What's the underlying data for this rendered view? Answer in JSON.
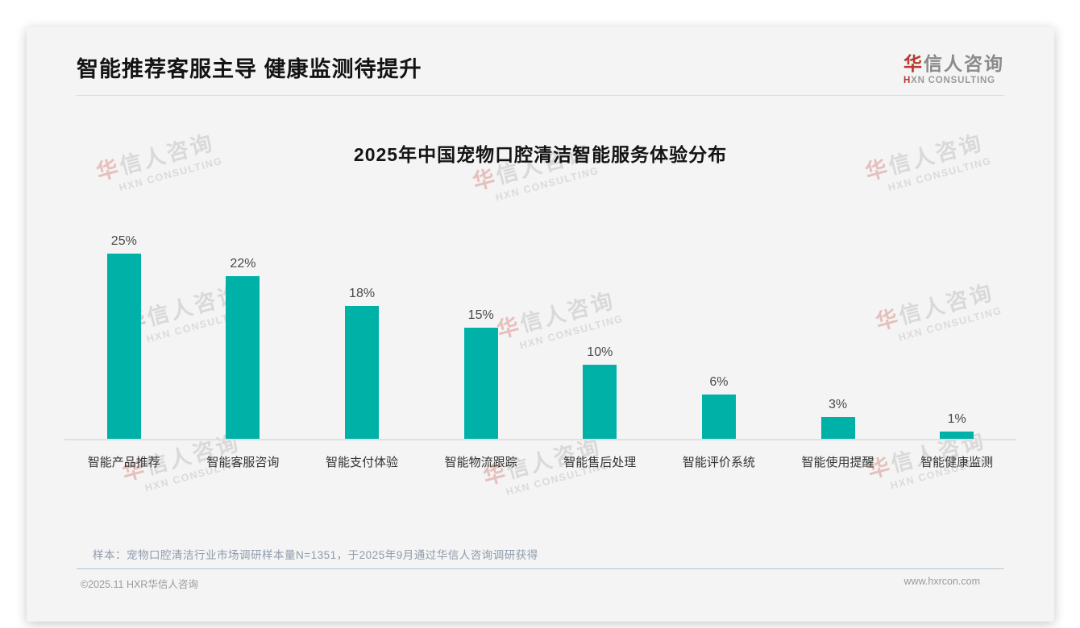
{
  "header": {
    "title": "智能推荐客服主导 健康监测待提升"
  },
  "logo": {
    "cn_accent": "华",
    "cn_rest": "信人咨询",
    "en_accent": "H",
    "en_rest": "XN CONSULTING"
  },
  "chart_data": {
    "type": "bar",
    "title": "2025年中国宠物口腔清洁智能服务体验分布",
    "categories": [
      "智能产品推荐",
      "智能客服咨询",
      "智能支付体验",
      "智能物流跟踪",
      "智能售后处理",
      "智能评价系统",
      "智能使用提醒",
      "智能健康监测"
    ],
    "values": [
      25,
      22,
      18,
      15,
      10,
      6,
      3,
      1
    ],
    "value_labels": [
      "25%",
      "22%",
      "18%",
      "15%",
      "10%",
      "6%",
      "3%",
      "1%"
    ],
    "unit": "%",
    "ylim": [
      0,
      27
    ],
    "grid": false,
    "legend": "none",
    "bar_color": "#00b1a8"
  },
  "watermark": {
    "cn_accent": "华",
    "cn_rest": "信人咨询",
    "en": "HXN CONSULTING"
  },
  "footnote": "样本：宠物口腔清洁行业市场调研样本量N=1351，于2025年9月通过华信人咨询调研获得",
  "footer": {
    "left": "©2025.11 HXR华信人咨询",
    "right": "www.hxrcon.com"
  },
  "colors": {
    "accent_red": "#b5392e",
    "bar_teal": "#00b1a8",
    "divider_blue": "#b6c3d1"
  }
}
